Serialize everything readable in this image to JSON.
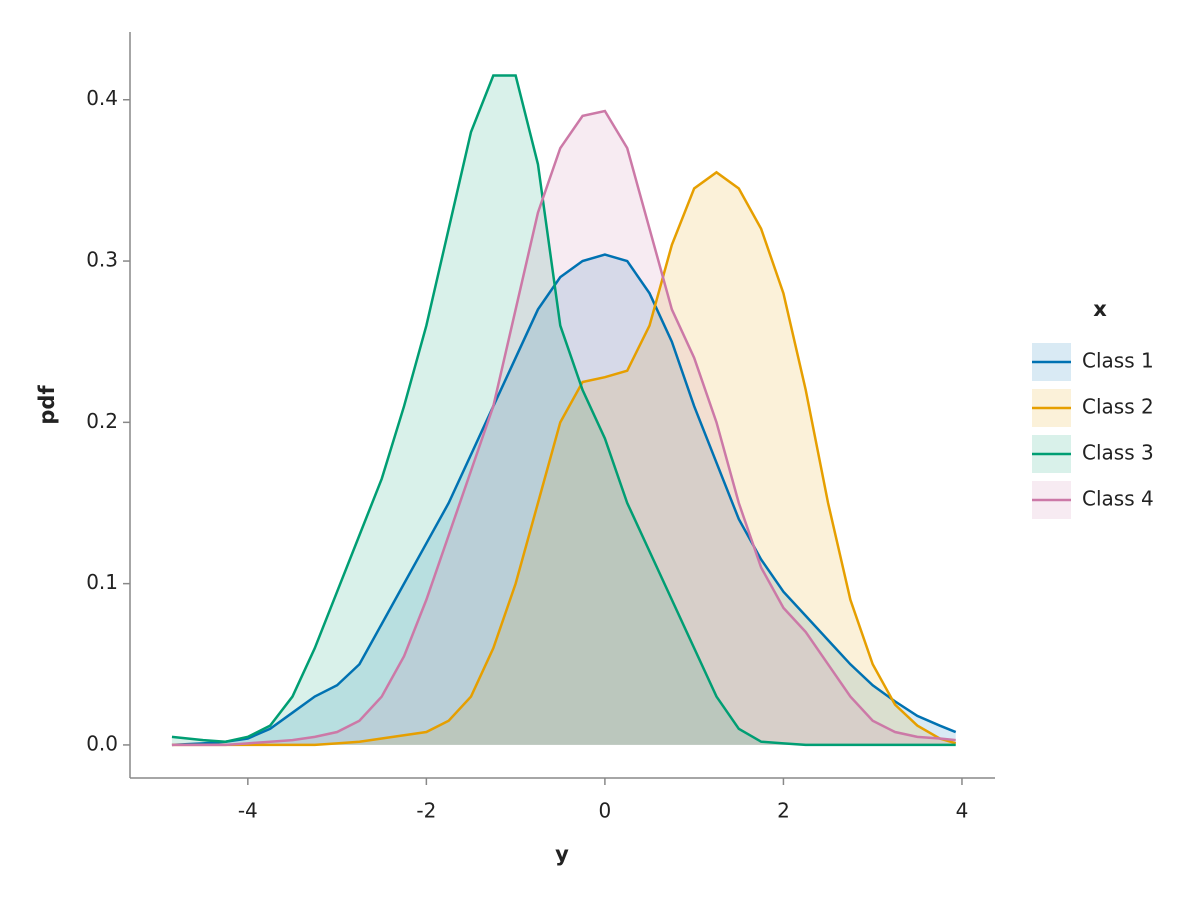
{
  "chart_data": {
    "type": "density",
    "xlabel": "y",
    "ylabel": "pdf",
    "legend_title": "x",
    "legend": "right",
    "xlim": [
      -5.32,
      4.37
    ],
    "ylim": [
      -0.0205,
      0.442
    ],
    "xticks": [
      -4,
      -2,
      0,
      2,
      4
    ],
    "yticks": [
      {
        "value": 0,
        "label": "0.0"
      },
      0.1,
      0.2,
      0.3,
      0.4
    ],
    "x": [
      -4.85,
      -4.5,
      -4.25,
      -4,
      -3.75,
      -3.5,
      -3.25,
      -3,
      -2.75,
      -2.5,
      -2.25,
      -2,
      -1.75,
      -1.5,
      -1.25,
      -1,
      -0.75,
      -0.5,
      -0.25,
      0,
      0.25,
      0.5,
      0.75,
      1,
      1.25,
      1.5,
      1.75,
      2,
      2.25,
      2.5,
      2.75,
      3,
      3.25,
      3.5,
      3.75,
      3.93
    ],
    "series": [
      {
        "name": "Class 1",
        "color": "#0072b2",
        "values": [
          0,
          0.001,
          0.002,
          0.004,
          0.01,
          0.02,
          0.03,
          0.037,
          0.05,
          0.075,
          0.1,
          0.125,
          0.15,
          0.18,
          0.21,
          0.24,
          0.27,
          0.29,
          0.3,
          0.304,
          0.3,
          0.28,
          0.25,
          0.21,
          0.175,
          0.14,
          0.115,
          0.095,
          0.08,
          0.065,
          0.05,
          0.037,
          0.027,
          0.018,
          0.012,
          0.008
        ]
      },
      {
        "name": "Class 2",
        "color": "#e69f00",
        "values": [
          0,
          0,
          0,
          0,
          0,
          0,
          0,
          0.001,
          0.002,
          0.004,
          0.006,
          0.008,
          0.015,
          0.03,
          0.06,
          0.1,
          0.15,
          0.2,
          0.225,
          0.228,
          0.232,
          0.26,
          0.31,
          0.345,
          0.355,
          0.345,
          0.32,
          0.28,
          0.22,
          0.15,
          0.09,
          0.05,
          0.025,
          0.012,
          0.004,
          0.001
        ]
      },
      {
        "name": "Class 3",
        "color": "#009e73",
        "values": [
          0.005,
          0.003,
          0.002,
          0.005,
          0.012,
          0.03,
          0.06,
          0.095,
          0.13,
          0.165,
          0.21,
          0.26,
          0.32,
          0.38,
          0.415,
          0.415,
          0.36,
          0.26,
          0.22,
          0.19,
          0.15,
          0.12,
          0.09,
          0.06,
          0.03,
          0.01,
          0.002,
          0.001,
          0,
          0,
          0,
          0,
          0,
          0,
          0,
          0
        ]
      },
      {
        "name": "Class 4",
        "color": "#cc79a7",
        "values": [
          0,
          0,
          0,
          0.001,
          0.002,
          0.003,
          0.005,
          0.008,
          0.015,
          0.03,
          0.055,
          0.09,
          0.13,
          0.17,
          0.21,
          0.27,
          0.33,
          0.37,
          0.39,
          0.393,
          0.37,
          0.32,
          0.27,
          0.24,
          0.2,
          0.15,
          0.11,
          0.085,
          0.07,
          0.05,
          0.03,
          0.015,
          0.008,
          0.005,
          0.004,
          0.003
        ]
      }
    ]
  }
}
